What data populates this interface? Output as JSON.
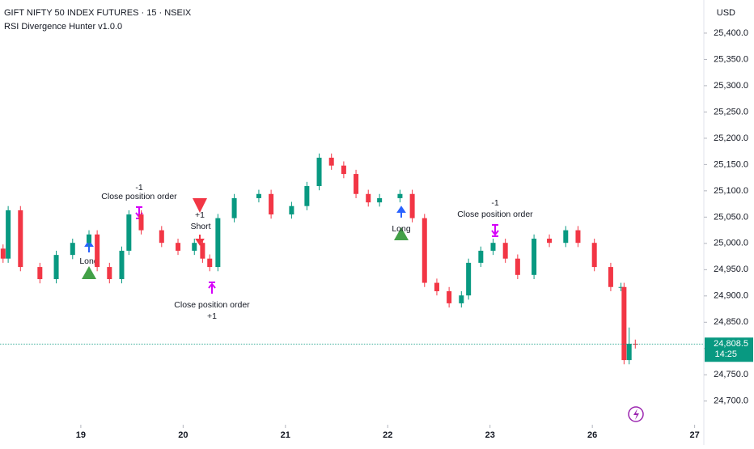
{
  "chart_data": {
    "type": "candlestick",
    "title": "GIFT NIFTY 50 INDEX FUTURES · 15 · NSEIX",
    "subtitle": "RSI Divergence Hunter v1.0.0",
    "currency": "USD",
    "up_color": "#089981",
    "down_color": "#f23645",
    "x": [
      -0.76,
      -0.71,
      -0.59,
      -0.4,
      -0.24,
      -0.08,
      0.08,
      0.16,
      0.28,
      0.4,
      0.47,
      0.59,
      0.79,
      0.95,
      1.11,
      1.19,
      1.26,
      1.34,
      1.5,
      1.74,
      1.86,
      2.06,
      2.21,
      2.33,
      2.45,
      2.57,
      2.69,
      2.81,
      2.92,
      3.12,
      3.24,
      3.36,
      3.48,
      3.6,
      3.72,
      3.79,
      3.91,
      4.03,
      4.15,
      4.27,
      4.43,
      4.58,
      4.74,
      4.86,
      5.02,
      5.18,
      5.28,
      5.31,
      5.36,
      5.42
    ],
    "open": [
      24990,
      24971,
      25063,
      24955,
      24932,
      24978,
      25001,
      25017,
      24955,
      24932,
      24986,
      25055,
      25025,
      25001,
      24986,
      25001,
      24971,
      24955,
      25048,
      25086,
      25094,
      25055,
      25071,
      25109,
      25163,
      25148,
      25132,
      25094,
      25078,
      25086,
      25094,
      25048,
      24925,
      24909,
      24886,
      24901,
      24963,
      24986,
      25001,
      24971,
      24940,
      25009,
      25001,
      25025,
      25001,
      24955,
      24917,
      24917,
      24778,
      24809
    ],
    "high": [
      24998,
      25071,
      25071,
      24963,
      24986,
      25009,
      25025,
      25025,
      24963,
      24994,
      25063,
      25063,
      25033,
      25009,
      25009,
      25009,
      24979,
      25056,
      25094,
      25102,
      25102,
      25079,
      25117,
      25171,
      25171,
      25156,
      25140,
      25102,
      25094,
      25102,
      25102,
      25056,
      24933,
      24917,
      24909,
      24971,
      24994,
      25009,
      25009,
      24979,
      25017,
      25017,
      25033,
      25033,
      25009,
      24963,
      24925,
      24925,
      24840,
      24817
    ],
    "low": [
      24963,
      24963,
      24947,
      24924,
      24924,
      24970,
      24993,
      24947,
      24924,
      24924,
      24978,
      25017,
      24993,
      24978,
      24978,
      24963,
      24947,
      24947,
      25040,
      25078,
      25047,
      25047,
      25063,
      25101,
      25140,
      25124,
      25086,
      25070,
      25070,
      25078,
      25040,
      24917,
      24901,
      24878,
      24878,
      24893,
      24955,
      24978,
      24963,
      24932,
      24932,
      24993,
      24993,
      24993,
      24947,
      24909,
      24909,
      24770,
      24770,
      24800
    ],
    "close": [
      24971,
      25063,
      24955,
      24932,
      24978,
      25001,
      25017,
      24955,
      24932,
      24986,
      25055,
      25025,
      25001,
      24986,
      25001,
      24971,
      24955,
      25048,
      25086,
      25094,
      25055,
      25071,
      25109,
      25163,
      25148,
      25132,
      25094,
      25078,
      25086,
      25094,
      25048,
      24925,
      24909,
      24886,
      24901,
      24963,
      24986,
      25001,
      24971,
      24940,
      25009,
      25001,
      25025,
      25001,
      24955,
      24917,
      24917,
      24778,
      24809,
      24808.5
    ],
    "xlim": [
      -0.79,
      6.09
    ],
    "xticks": [
      {
        "value": 0,
        "label": "19"
      },
      {
        "value": 1,
        "label": "20"
      },
      {
        "value": 2,
        "label": "21"
      },
      {
        "value": 3,
        "label": "22"
      },
      {
        "value": 4,
        "label": "23"
      },
      {
        "value": 5,
        "label": "26"
      },
      {
        "value": 6,
        "label": "27"
      }
    ],
    "ylim": [
      24655,
      25463
    ],
    "yticks": [
      {
        "value": 24700,
        "label": "24,700.0"
      },
      {
        "value": 24750,
        "label": "24,750.0"
      },
      {
        "value": 24800,
        "label": "24,800.0"
      },
      {
        "value": 24850,
        "label": "24,850.0"
      },
      {
        "value": 24900,
        "label": "24,900.0"
      },
      {
        "value": 24950,
        "label": "24,950.0"
      },
      {
        "value": 25000,
        "label": "25,000.0"
      },
      {
        "value": 25050,
        "label": "25,050.0"
      },
      {
        "value": 25100,
        "label": "25,100.0"
      },
      {
        "value": 25150,
        "label": "25,150.0"
      },
      {
        "value": 25200,
        "label": "25,200.0"
      },
      {
        "value": 25250,
        "label": "25,250.0"
      },
      {
        "value": 25300,
        "label": "25,300.0"
      },
      {
        "value": 25350,
        "label": "25,350.0"
      },
      {
        "value": 25400,
        "label": "25,400.0"
      }
    ],
    "last_price": 24808.5,
    "last_price_label": "24,808.5",
    "countdown": "14:25",
    "annotations": [
      "-1",
      "Close position order",
      "Long",
      "+1",
      "Short",
      "Close position order",
      "+1",
      "Long",
      "-1",
      "Close position order"
    ]
  }
}
